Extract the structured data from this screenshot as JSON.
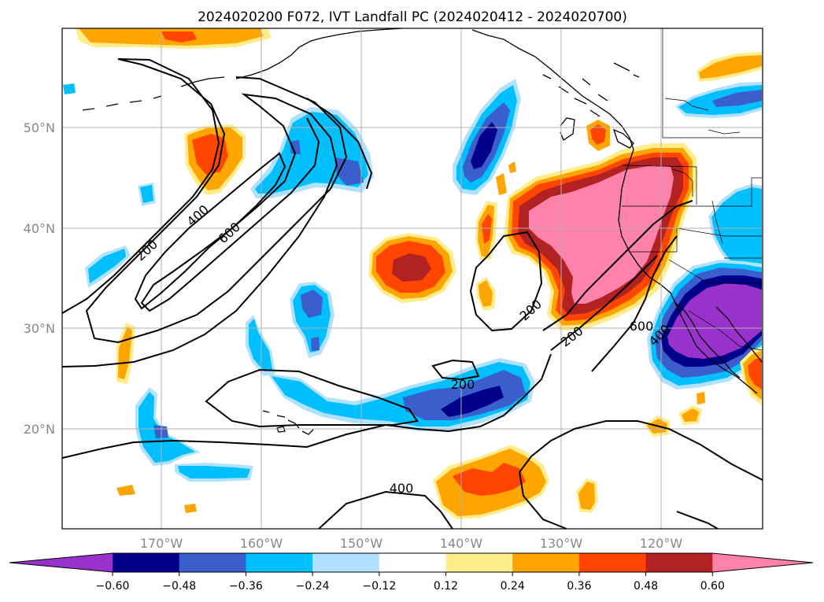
{
  "title": "2024020200 F072, IVT Landfall PC (2024020412 - 2024020700)",
  "lat_labels": [
    "50°N",
    "40°N",
    "30°N",
    "20°N"
  ],
  "lon_labels": [
    "170°W",
    "160°W",
    "150°W",
    "140°W",
    "130°W",
    "120°W"
  ],
  "colorbar": {
    "ticks": [
      "−0.60",
      "−0.48",
      "−0.36",
      "−0.24",
      "−0.12",
      "0.12",
      "0.24",
      "0.36",
      "0.48",
      "0.60"
    ],
    "colors": [
      "#9932CC",
      "#00008B",
      "#3A5FCD",
      "#00BFFF",
      "#B0E2FF",
      "#FFFFFF",
      "#FFEC8B",
      "#FFA500",
      "#FF4500",
      "#B22222",
      "#FF82AB"
    ]
  },
  "contour_labels": [
    "200",
    "400",
    "600",
    "200",
    "200",
    "600",
    "400",
    "200",
    "400"
  ],
  "colors": {
    "purple": "#9932CC",
    "navy": "#00008B",
    "royalblue": "#3A5FCD",
    "skyblue": "#00BFFF",
    "lightblue": "#B0E2FF",
    "khaki": "#FFEC8B",
    "orange": "#FFA500",
    "orangered": "#FF4500",
    "firebrick": "#B22222",
    "pink": "#FF82AB"
  }
}
